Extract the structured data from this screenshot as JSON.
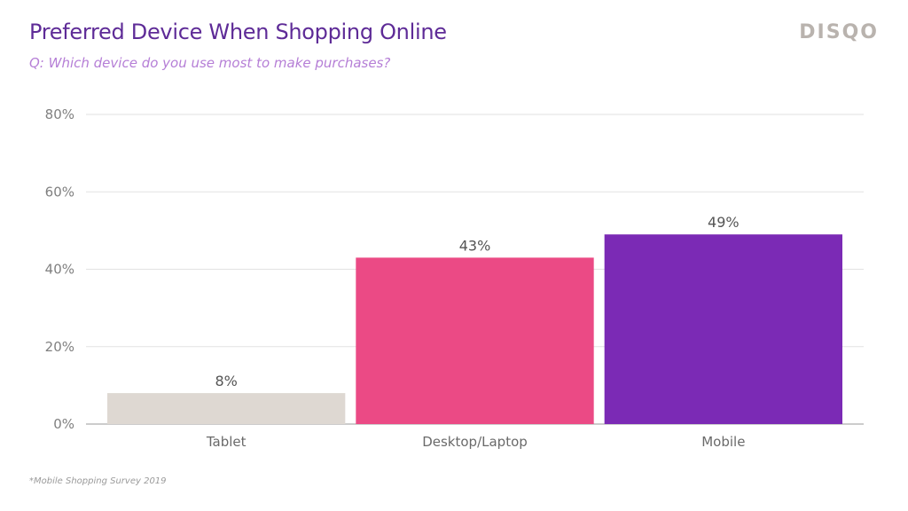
{
  "header": {
    "title": "Preferred Device When Shopping Online",
    "subtitle": "Q: Which device do you use most to make purchases?",
    "logo": "DISQO"
  },
  "footnote": "*Mobile Shopping Survey 2019",
  "chart_data": {
    "type": "bar",
    "title": "Preferred Device When Shopping Online",
    "subtitle": "Q: Which device do you use most to make purchases?",
    "categories": [
      "Tablet",
      "Desktop/Laptop",
      "Mobile"
    ],
    "values": [
      8,
      43,
      49
    ],
    "data_labels": [
      "8%",
      "43%",
      "49%"
    ],
    "colors": [
      "#ded8d2",
      "#eb4a85",
      "#7b2ab5"
    ],
    "ylim": [
      0,
      80
    ],
    "yticks": [
      0,
      20,
      40,
      60,
      80
    ],
    "ytick_labels": [
      "0%",
      "20%",
      "40%",
      "60%",
      "80%"
    ],
    "grid": true,
    "legend": "none"
  }
}
